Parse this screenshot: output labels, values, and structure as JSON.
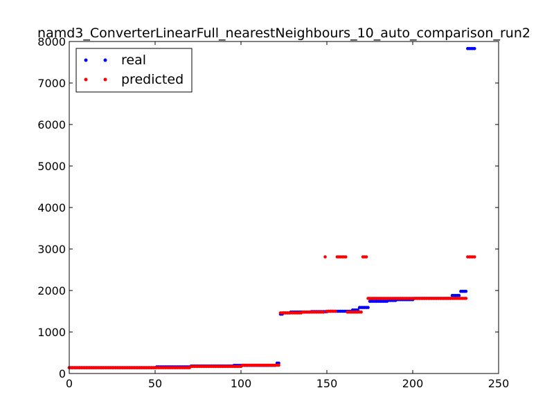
{
  "chart_data": {
    "type": "scatter",
    "title": "namd3_ConverterLinearFull_nearestNeighbours_10_auto_comparison_run2",
    "xlabel": "",
    "ylabel": "",
    "xlim": [
      0,
      250
    ],
    "ylim": [
      0,
      8000
    ],
    "x_ticks": [
      0,
      50,
      100,
      150,
      200,
      250
    ],
    "y_ticks": [
      0,
      1000,
      2000,
      3000,
      4000,
      5000,
      6000,
      7000,
      8000
    ],
    "legend_position": "top-left",
    "grid": false,
    "series": [
      {
        "name": "real",
        "color": "#0000ff",
        "marker": "dot",
        "segments": [
          {
            "x_start": 0,
            "x_end": 50,
            "y": 140
          },
          {
            "x_start": 51,
            "x_end": 70,
            "y": 160
          },
          {
            "x_start": 71,
            "x_end": 95,
            "y": 180
          },
          {
            "x_start": 96,
            "x_end": 120,
            "y": 195
          },
          {
            "x_start": 121,
            "x_end": 122,
            "y": 250
          },
          {
            "x_start": 123,
            "x_end": 124,
            "y": 1430
          },
          {
            "x_start": 125,
            "x_end": 128,
            "y": 1460
          },
          {
            "x_start": 129,
            "x_end": 140,
            "y": 1480
          },
          {
            "x_start": 141,
            "x_end": 150,
            "y": 1490
          },
          {
            "x_start": 151,
            "x_end": 164,
            "y": 1500
          },
          {
            "x_start": 165,
            "x_end": 168,
            "y": 1530
          },
          {
            "x_start": 169,
            "x_end": 174,
            "y": 1590
          },
          {
            "x_start": 175,
            "x_end": 185,
            "y": 1740
          },
          {
            "x_start": 186,
            "x_end": 190,
            "y": 1760
          },
          {
            "x_start": 191,
            "x_end": 200,
            "y": 1780
          },
          {
            "x_start": 201,
            "x_end": 222,
            "y": 1810
          },
          {
            "x_start": 223,
            "x_end": 227,
            "y": 1880
          },
          {
            "x_start": 228,
            "x_end": 231,
            "y": 1980
          },
          {
            "x_start": 232,
            "x_end": 236,
            "y": 7830
          }
        ]
      },
      {
        "name": "predicted",
        "color": "#ff0000",
        "marker": "dot",
        "segments": [
          {
            "x_start": 0,
            "x_end": 70,
            "y": 140
          },
          {
            "x_start": 71,
            "x_end": 100,
            "y": 170
          },
          {
            "x_start": 101,
            "x_end": 122,
            "y": 200
          },
          {
            "x_start": 123,
            "x_end": 135,
            "y": 1460
          },
          {
            "x_start": 136,
            "x_end": 148,
            "y": 1480
          },
          {
            "x_start": 149,
            "x_end": 149,
            "y": 2810
          },
          {
            "x_start": 150,
            "x_end": 155,
            "y": 1500
          },
          {
            "x_start": 156,
            "x_end": 161,
            "y": 2810
          },
          {
            "x_start": 162,
            "x_end": 170,
            "y": 1480
          },
          {
            "x_start": 171,
            "x_end": 173,
            "y": 2810
          },
          {
            "x_start": 174,
            "x_end": 231,
            "y": 1810
          },
          {
            "x_start": 232,
            "x_end": 236,
            "y": 2810
          }
        ]
      }
    ]
  }
}
